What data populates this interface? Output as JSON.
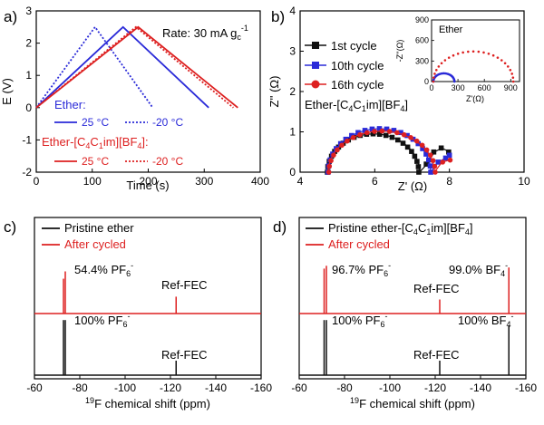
{
  "panels": [
    {
      "letter": "a)"
    },
    {
      "letter": "b)"
    },
    {
      "letter": "c)"
    },
    {
      "letter": "d)"
    }
  ],
  "chart_data": [
    {
      "panel": "a)",
      "type": "line",
      "xlabel": "Time (s)",
      "ylabel": "E (V)",
      "xlim": [
        0,
        400
      ],
      "ylim": [
        -2,
        3
      ],
      "xticks": [
        "0",
        "100",
        "200",
        "300",
        "400"
      ],
      "yticks": [
        "-2",
        "-1",
        "0",
        "1",
        "2",
        "3"
      ],
      "annotation": {
        "text": "Rate: 30 mA g",
        "sub": "c",
        "sup": "-1"
      },
      "legend": {
        "group1_title": "Ether:",
        "group1_color": "#2a2ad8",
        "group1_items": [
          "25 °C",
          "-20 °C"
        ],
        "group2_title_main": "Ether-[C",
        "group2_title_sub1": "4",
        "group2_title_mid1": "C",
        "group2_title_sub2": "1",
        "group2_title_mid2": "im][BF",
        "group2_title_sub3": "4",
        "group2_title_end": "]:",
        "group2_color": "#dd2020",
        "group2_items": [
          "25 °C",
          "-20 °C"
        ]
      },
      "series": [
        {
          "group": "Ether",
          "temp": "25 °C",
          "style": "solid",
          "color": "#2a2ad8",
          "x": [
            0,
            155,
            308
          ],
          "y": [
            0,
            2.5,
            0
          ]
        },
        {
          "group": "Ether",
          "temp": "-20 °C",
          "style": "dotted",
          "color": "#2a2ad8",
          "x": [
            0,
            105,
            208
          ],
          "y": [
            0,
            2.5,
            0
          ]
        },
        {
          "group": "Ether-[C4C1im][BF4]",
          "temp": "25 °C",
          "style": "solid",
          "color": "#dd2020",
          "x": [
            0,
            182,
            360
          ],
          "y": [
            0,
            2.5,
            0
          ]
        },
        {
          "group": "Ether-[C4C1im][BF4]",
          "temp": "-20 °C",
          "style": "dotted",
          "color": "#dd2020",
          "x": [
            0,
            178,
            352
          ],
          "y": [
            0,
            2.5,
            0
          ]
        }
      ]
    },
    {
      "panel": "b)",
      "type": "scatter",
      "xlabel": "Z' (Ω)",
      "ylabel": "Z'' (Ω)",
      "xlim": [
        4,
        10
      ],
      "ylim": [
        0,
        4
      ],
      "xticks": [
        "4",
        "6",
        "8",
        "10"
      ],
      "yticks": [
        "0",
        "1",
        "2",
        "3",
        "4"
      ],
      "label_main": "Ether-[C",
      "label_sub1": "4",
      "label_mid1": "C",
      "label_sub2": "1",
      "label_mid2": "im][BF",
      "label_sub3": "4",
      "label_end": "]",
      "series": [
        {
          "name": "1st cycle",
          "color": "#111111",
          "marker": "square",
          "x0": 4.75,
          "x1": 7.2,
          "h": 0.95,
          "tail": [
            [
              7.4,
              0.2
            ],
            [
              7.6,
              0.5
            ],
            [
              7.8,
              0.6
            ],
            [
              8.0,
              0.5
            ]
          ]
        },
        {
          "name": "10th cycle",
          "color": "#2a2ad8",
          "marker": "square",
          "x0": 4.75,
          "x1": 7.5,
          "h": 1.08,
          "tail": [
            [
              7.7,
              0.25
            ],
            [
              7.9,
              0.35
            ],
            [
              8.0,
              0.42
            ]
          ]
        },
        {
          "name": "16th cycle",
          "color": "#dd2020",
          "marker": "circle",
          "x0": 4.75,
          "x1": 7.6,
          "h": 1.02,
          "tail": [
            [
              7.8,
              0.25
            ],
            [
              8.0,
              0.3
            ]
          ]
        }
      ],
      "inset": {
        "title": "Ether",
        "xlabel": "Z'(Ω)",
        "ylabel": "-Z''(Ω)",
        "xlim": [
          0,
          1000
        ],
        "ylim": [
          0,
          900
        ],
        "xticks": [
          "0",
          "300",
          "600",
          "900"
        ],
        "yticks": [
          "0",
          "300",
          "600",
          "900"
        ],
        "series": [
          {
            "name": "blue",
            "color": "#2a2ad8",
            "x0": 20,
            "x1": 260,
            "h": 120
          },
          {
            "name": "red",
            "color": "#dd2020",
            "x0": 20,
            "x1": 930,
            "h": 440
          }
        ]
      }
    },
    {
      "panel": "c)",
      "type": "line",
      "xlabel_sup": "19",
      "xlabel": "F chemical shift (ppm)",
      "xlim": [
        -60,
        -160
      ],
      "xticks": [
        "-60",
        "-80",
        "-100",
        "-120",
        "-140",
        "-160"
      ],
      "series": [
        {
          "name": "Pristine ether",
          "color": "#111111",
          "peaks": [
            {
              "x": -72.8,
              "h": 0.95
            },
            {
              "x": -73.6,
              "h": 0.95
            },
            {
              "x": -122.5,
              "h": 0.25
            }
          ]
        },
        {
          "name": "After cycled",
          "color": "#dd2020",
          "peaks": [
            {
              "x": -72.8,
              "h": 0.62
            },
            {
              "x": -73.6,
              "h": 0.75
            },
            {
              "x": -122.5,
              "h": 0.3
            }
          ]
        }
      ],
      "labels": {
        "red_pf6": {
          "text": "54.4% PF",
          "sub": "6",
          "sup": "-"
        },
        "red_ref": "Ref-FEC",
        "black_pf6": {
          "text": "100% PF",
          "sub": "6",
          "sup": "-"
        },
        "black_ref": "Ref-FEC"
      }
    },
    {
      "panel": "d)",
      "type": "line",
      "xlabel_sup": "19",
      "xlabel": "F chemical shift (ppm)",
      "xlim": [
        -60,
        -160
      ],
      "xticks": [
        "-60",
        "-80",
        "-100",
        "-120",
        "-140",
        "-160"
      ],
      "legend_pristine": {
        "main": "Pristine ether-[C",
        "s1": "4",
        "m1": "C",
        "s2": "1",
        "m2": "im][BF",
        "s3": "4",
        "end": "]"
      },
      "series": [
        {
          "name": "Pristine ether-[C4C1im][BF4]",
          "color": "#111111",
          "peaks": [
            {
              "x": -71.0,
              "h": 0.95
            },
            {
              "x": -72.0,
              "h": 0.95
            },
            {
              "x": -122.0,
              "h": 0.25
            },
            {
              "x": -152.5,
              "h": 0.85
            }
          ]
        },
        {
          "name": "After cycled",
          "color": "#dd2020",
          "peaks": [
            {
              "x": -71.0,
              "h": 0.8
            },
            {
              "x": -72.0,
              "h": 0.85
            },
            {
              "x": -122.0,
              "h": 0.25
            },
            {
              "x": -152.5,
              "h": 0.82
            }
          ]
        }
      ],
      "labels": {
        "red_pf6": {
          "text": "96.7% PF",
          "sub": "6",
          "sup": "-"
        },
        "red_bf4": {
          "text": "99.0% BF",
          "sub": "4",
          "sup": "-"
        },
        "red_ref": "Ref-FEC",
        "black_pf6": {
          "text": "100% PF",
          "sub": "6",
          "sup": "-"
        },
        "black_bf4": {
          "text": "100% BF",
          "sub": "4",
          "sup": "-"
        },
        "black_ref": "Ref-FEC"
      }
    }
  ]
}
